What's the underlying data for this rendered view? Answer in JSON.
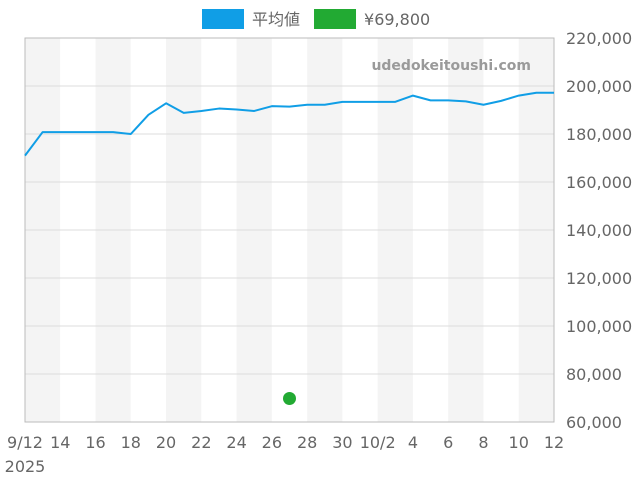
{
  "chart_data": {
    "type": "line",
    "x": [
      "9/12",
      "9/13",
      "9/14",
      "9/15",
      "9/16",
      "9/17",
      "9/18",
      "9/19",
      "9/20",
      "9/21",
      "9/22",
      "9/23",
      "9/24",
      "9/25",
      "9/26",
      "9/27",
      "9/28",
      "9/29",
      "9/30",
      "10/1",
      "10/2",
      "10/3",
      "10/4",
      "10/5",
      "10/6",
      "10/7",
      "10/8",
      "10/9",
      "10/10",
      "10/11",
      "10/12"
    ],
    "x_tick_labels": [
      "9/12",
      "14",
      "16",
      "18",
      "20",
      "22",
      "24",
      "26",
      "28",
      "30",
      "10/2",
      "4",
      "6",
      "8",
      "10",
      "12"
    ],
    "x_year_label": "2025",
    "series": [
      {
        "name": "平均値",
        "color": "#109ee6",
        "values": [
          171000,
          180800,
          180800,
          180800,
          180800,
          180800,
          180000,
          188000,
          192800,
          188800,
          189600,
          190600,
          190200,
          189600,
          191600,
          191400,
          192200,
          192200,
          193400,
          193400,
          193400,
          193400,
          196000,
          194000,
          194000,
          193600,
          192200,
          193800,
          196000,
          197200,
          197200
        ]
      },
      {
        "name": "¥69,800",
        "color": "#22aa33",
        "points": [
          {
            "x": "9/27",
            "y": 69800
          }
        ]
      }
    ],
    "ylim": [
      60000,
      220000
    ],
    "y_ticks": [
      "60,000",
      "80,000",
      "100,000",
      "120,000",
      "140,000",
      "160,000",
      "180,000",
      "200,000",
      "220,000"
    ],
    "grid": true,
    "legend": "top-center",
    "watermark": "udedokeitoushi.com"
  }
}
